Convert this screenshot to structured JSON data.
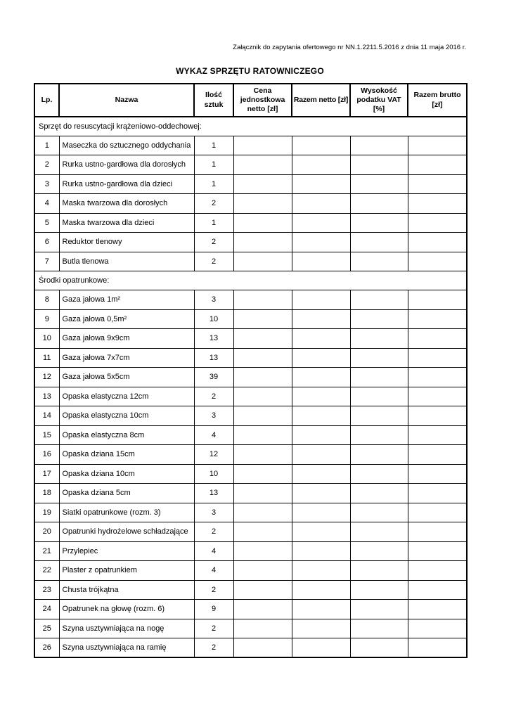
{
  "page": {
    "note": "Załącznik do zapytania ofertowego nr NN.1.2211.5.2016 z dnia 11 maja 2016 r.",
    "title": "WYKAZ SPRZĘTU RATOWNICZEGO"
  },
  "colors": {
    "page_bg": "#ffffff",
    "text": "#000000",
    "border": "#000000"
  },
  "table": {
    "columns": [
      "Lp.",
      "Nazwa",
      "Ilość sztuk",
      "Cena jednostkowa netto [zł]",
      "Razem netto [zł]",
      "Wysokość podatku VAT [%]",
      "Razem brutto [zł]"
    ],
    "sections": [
      {
        "label": "Sprzęt do resuscytacji krążeniowo-oddechowej:",
        "items": [
          {
            "lp": 1,
            "nazwa": "Maseczka do sztucznego oddychania",
            "ilosc_sztuk": 1
          },
          {
            "lp": 2,
            "nazwa": "Rurka ustno-gardłowa dla dorosłych",
            "ilosc_sztuk": 1
          },
          {
            "lp": 3,
            "nazwa": "Rurka ustno-gardłowa dla dzieci",
            "ilosc_sztuk": 1
          },
          {
            "lp": 4,
            "nazwa": "Maska twarzowa dla dorosłych",
            "ilosc_sztuk": 2
          },
          {
            "lp": 5,
            "nazwa": "Maska twarzowa dla dzieci",
            "ilosc_sztuk": 1
          },
          {
            "lp": 6,
            "nazwa": "Reduktor tlenowy",
            "ilosc_sztuk": 2
          },
          {
            "lp": 7,
            "nazwa": "Butla tlenowa",
            "ilosc_sztuk": 2
          }
        ]
      },
      {
        "label": "Środki opatrunkowe:",
        "items": [
          {
            "lp": 8,
            "nazwa": "Gaza jałowa 1m²",
            "ilosc_sztuk": 3
          },
          {
            "lp": 9,
            "nazwa": "Gaza jałowa 0,5m²",
            "ilosc_sztuk": 10
          },
          {
            "lp": 10,
            "nazwa": "Gaza jałowa 9x9cm",
            "ilosc_sztuk": 13
          },
          {
            "lp": 11,
            "nazwa": "Gaza jałowa 7x7cm",
            "ilosc_sztuk": 13
          },
          {
            "lp": 12,
            "nazwa": "Gaza jałowa 5x5cm",
            "ilosc_sztuk": 39
          },
          {
            "lp": 13,
            "nazwa": "Opaska elastyczna 12cm",
            "ilosc_sztuk": 2
          },
          {
            "lp": 14,
            "nazwa": "Opaska elastyczna 10cm",
            "ilosc_sztuk": 3
          },
          {
            "lp": 15,
            "nazwa": "Opaska elastyczna 8cm",
            "ilosc_sztuk": 4
          },
          {
            "lp": 16,
            "nazwa": "Opaska dziana 15cm",
            "ilosc_sztuk": 12
          },
          {
            "lp": 17,
            "nazwa": "Opaska dziana 10cm",
            "ilosc_sztuk": 10
          },
          {
            "lp": 18,
            "nazwa": "Opaska dziana 5cm",
            "ilosc_sztuk": 13
          },
          {
            "lp": 19,
            "nazwa": "Siatki opatrunkowe (rozm. 3)",
            "ilosc_sztuk": 3
          },
          {
            "lp": 20,
            "nazwa": "Opatrunki hydrożelowe schładzające",
            "ilosc_sztuk": 2
          },
          {
            "lp": 21,
            "nazwa": "Przylepiec",
            "ilosc_sztuk": 4
          },
          {
            "lp": 22,
            "nazwa": "Plaster z opatrunkiem",
            "ilosc_sztuk": 4
          },
          {
            "lp": 23,
            "nazwa": "Chusta trójkątna",
            "ilosc_sztuk": 2
          },
          {
            "lp": 24,
            "nazwa": "Opatrunek na głowę (rozm. 6)",
            "ilosc_sztuk": 9
          },
          {
            "lp": 25,
            "nazwa": "Szyna usztywniająca na nogę",
            "ilosc_sztuk": 2
          },
          {
            "lp": 26,
            "nazwa": "Szyna usztywniająca na ramię",
            "ilosc_sztuk": 2
          }
        ]
      }
    ]
  }
}
